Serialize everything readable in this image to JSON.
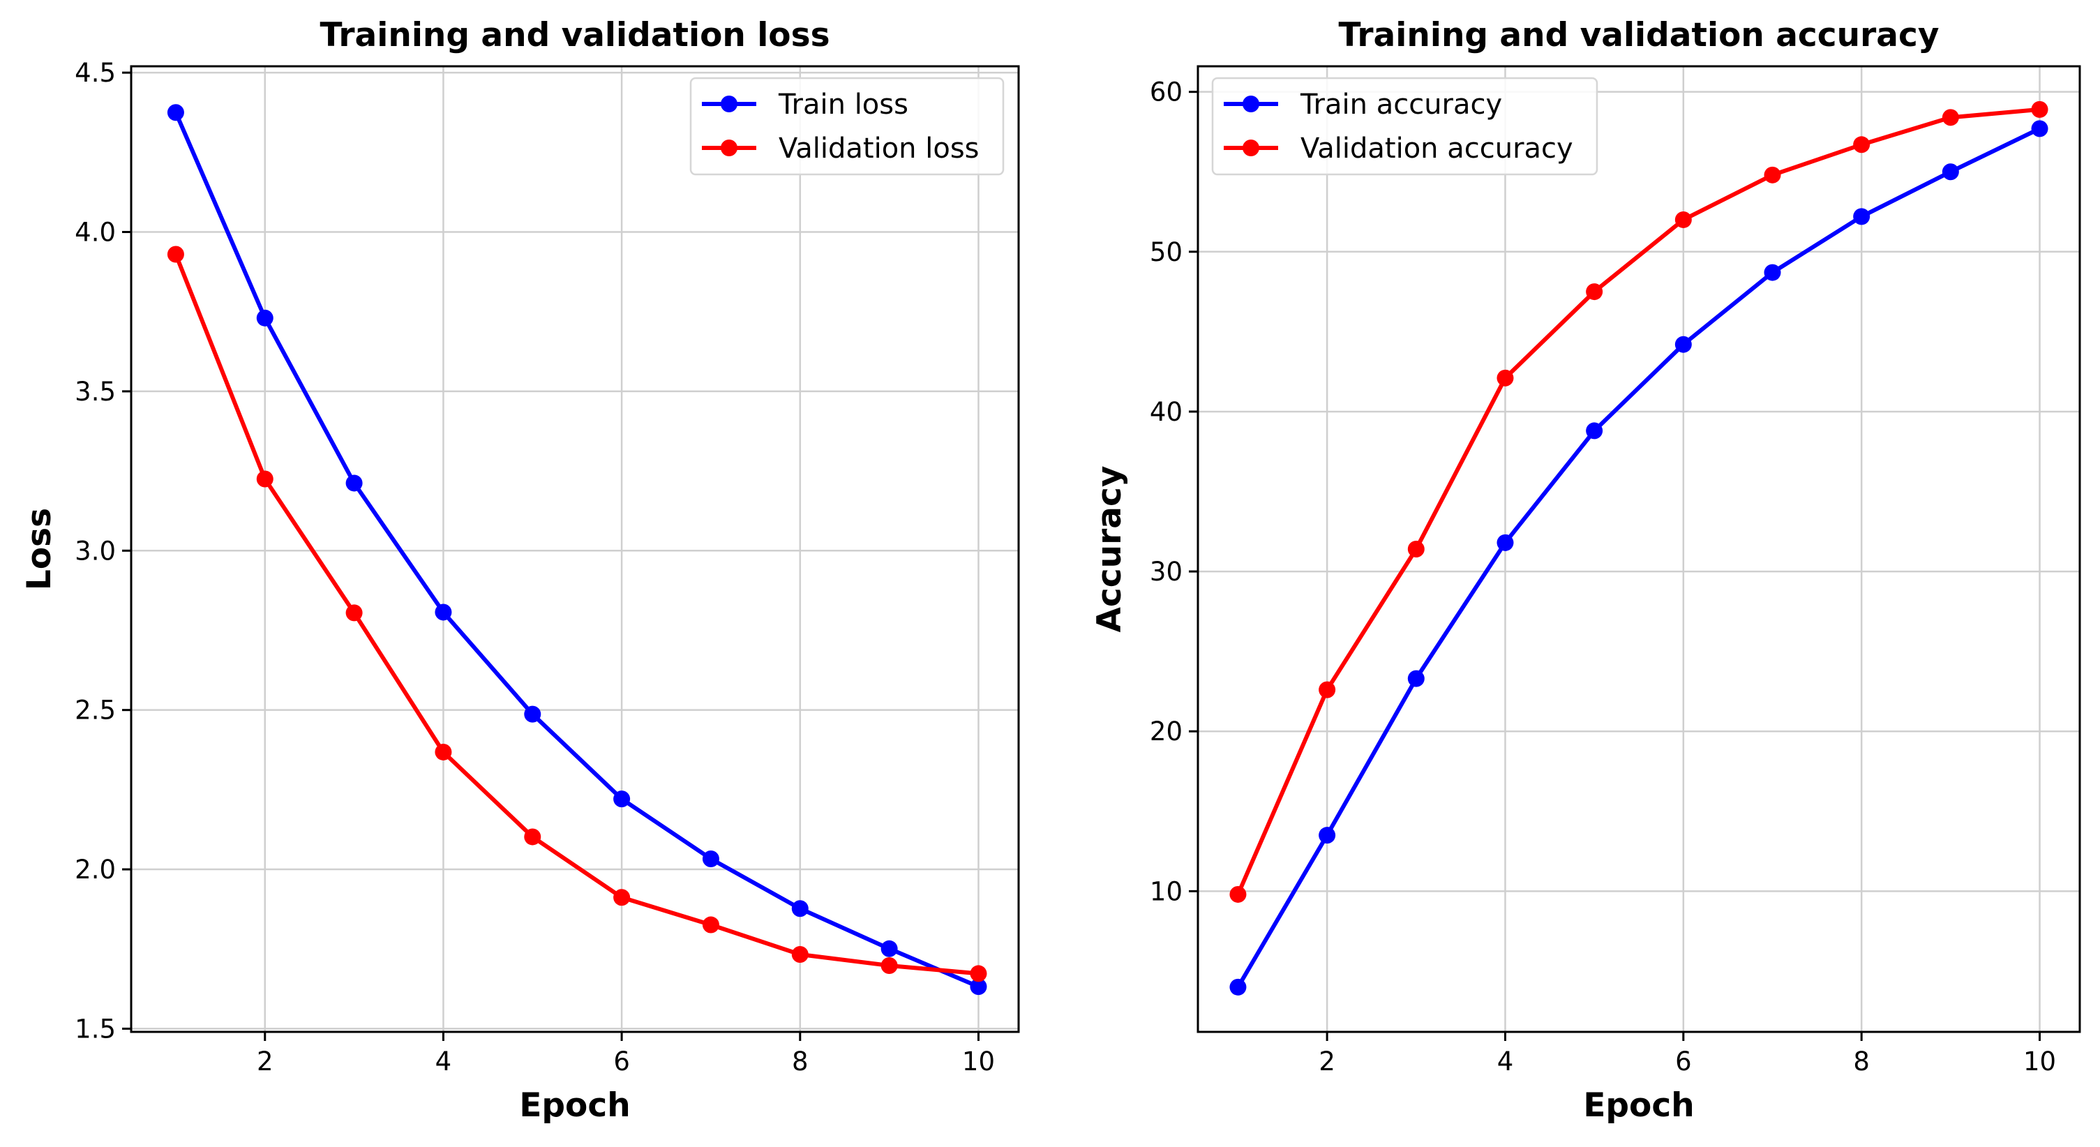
{
  "chart_data": [
    {
      "type": "line",
      "title": "Training and validation loss",
      "xlabel": "Epoch",
      "ylabel": "Loss",
      "x": [
        1,
        2,
        3,
        4,
        5,
        6,
        7,
        8,
        9,
        10
      ],
      "xticks": [
        2,
        4,
        6,
        8,
        10
      ],
      "xlim": [
        0.5,
        10.45
      ],
      "yticks": [
        1.5,
        2.0,
        2.5,
        3.0,
        3.5,
        4.0,
        4.5
      ],
      "ylim": [
        1.49,
        4.52
      ],
      "grid": true,
      "legend": "top-right",
      "series": [
        {
          "name": "Train loss",
          "color": "#0000ff",
          "values": [
            4.375,
            3.73,
            3.212,
            2.807,
            2.487,
            2.221,
            2.033,
            1.877,
            1.751,
            1.632
          ]
        },
        {
          "name": "Validation loss",
          "color": "#ff0000",
          "values": [
            3.93,
            3.225,
            2.805,
            2.368,
            2.102,
            1.912,
            1.826,
            1.733,
            1.698,
            1.673
          ]
        }
      ]
    },
    {
      "type": "line",
      "title": "Training and validation accuracy",
      "xlabel": "Epoch",
      "ylabel": "Accuracy",
      "x": [
        1,
        2,
        3,
        4,
        5,
        6,
        7,
        8,
        9,
        10
      ],
      "xticks": [
        2,
        4,
        6,
        8,
        10
      ],
      "xlim": [
        0.55,
        10.45
      ],
      "yticks": [
        10,
        20,
        30,
        40,
        50,
        60
      ],
      "ylim": [
        1.2,
        61.6
      ],
      "grid": true,
      "legend": "top-left",
      "series": [
        {
          "name": "Train accuracy",
          "color": "#0000ff",
          "values": [
            4.0,
            13.5,
            23.3,
            31.8,
            38.8,
            44.2,
            48.7,
            52.2,
            55.0,
            57.7
          ]
        },
        {
          "name": "Validation accuracy",
          "color": "#ff0000",
          "values": [
            9.8,
            22.6,
            31.4,
            42.1,
            47.5,
            52.0,
            54.8,
            56.7,
            58.4,
            58.9
          ]
        }
      ]
    }
  ]
}
